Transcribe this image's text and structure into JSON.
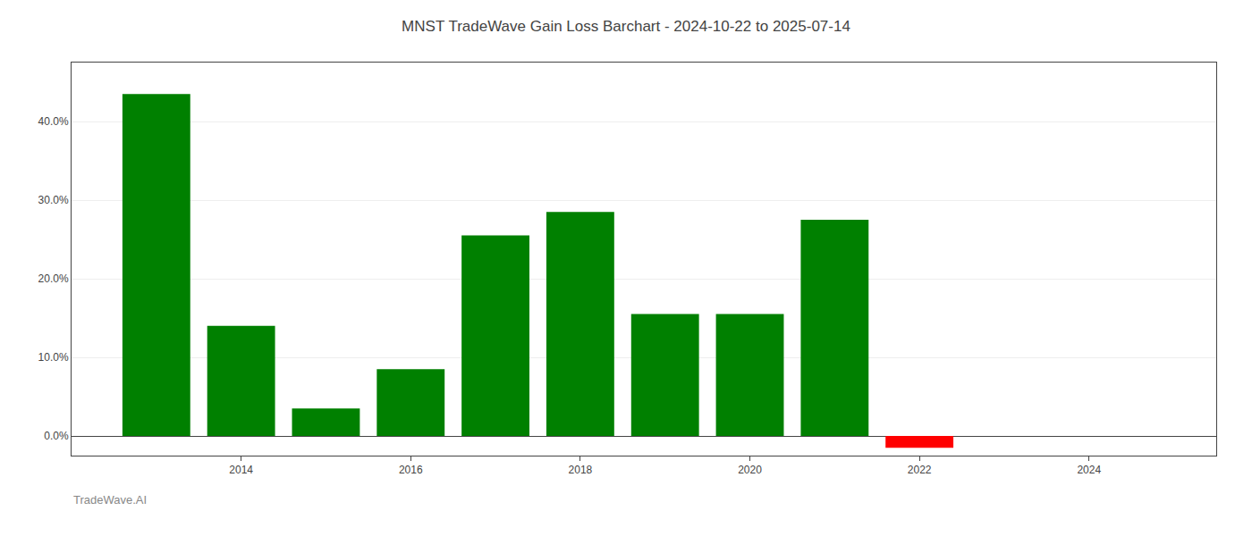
{
  "chart_data": {
    "type": "bar",
    "title": "MNST TradeWave Gain Loss Barchart - 2024-10-22 to 2025-07-14",
    "annotations": [
      "TradeWave.AI"
    ],
    "x": [
      2013,
      2014,
      2015,
      2016,
      2017,
      2018,
      2019,
      2020,
      2021,
      2022,
      2023
    ],
    "values": [
      0.435,
      0.14,
      0.035,
      0.085,
      0.255,
      0.285,
      0.155,
      0.155,
      0.275,
      -0.015,
      0.0
    ],
    "colors": [
      "#008000",
      "#008000",
      "#008000",
      "#008000",
      "#008000",
      "#008000",
      "#008000",
      "#008000",
      "#008000",
      "#ff0000",
      "#008000"
    ],
    "xlim": [
      2012.0,
      2025.5
    ],
    "xticks": [
      2014,
      2016,
      2018,
      2020,
      2022,
      2024
    ],
    "ylim": [
      -0.025,
      0.475
    ],
    "yticks": [
      {
        "value": 0.0,
        "label": "0.0%"
      },
      {
        "value": 0.1,
        "label": "10.0%"
      },
      {
        "value": 0.2,
        "label": "20.0%"
      },
      {
        "value": 0.3,
        "label": "30.0%"
      },
      {
        "value": 0.4,
        "label": "40.0%"
      }
    ],
    "grid": true
  }
}
